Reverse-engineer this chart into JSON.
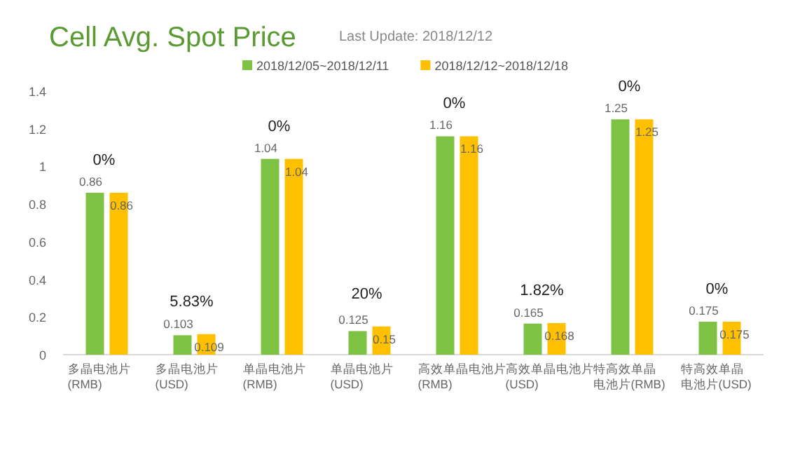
{
  "chart_data": {
    "type": "bar",
    "title": "Cell Avg. Spot Price",
    "subtitle": "Last Update: 2018/12/12",
    "categories": [
      "多晶电池片(RMB)",
      "多晶电池片(USD)",
      "单晶电池片(RMB)",
      "单晶电池片(USD)",
      "高效单晶电池片(RMB)",
      "高效单晶电池片(USD)",
      "特高效单晶电池片(RMB)",
      "特高效单晶电池片(USD)"
    ],
    "series": [
      {
        "name": "2018/12/05~2018/12/11",
        "color": "#7dc242",
        "values": [
          0.86,
          0.103,
          1.04,
          0.125,
          1.16,
          0.165,
          1.25,
          0.175
        ]
      },
      {
        "name": "2018/12/12~2018/12/18",
        "color": "#ffc000",
        "values": [
          0.86,
          0.109,
          1.04,
          0.15,
          1.16,
          0.168,
          1.25,
          0.175
        ]
      }
    ],
    "ylim": [
      0,
      1.4
    ],
    "yticks": [
      0,
      0.2,
      0.4,
      0.6,
      0.8,
      1,
      1.2,
      1.4
    ],
    "grid": false,
    "legend": "top",
    "data_labels": true,
    "annotations": [
      "0%",
      "5.83%",
      "0%",
      "20%",
      "0%",
      "1.82%",
      "0%",
      "0%"
    ]
  }
}
